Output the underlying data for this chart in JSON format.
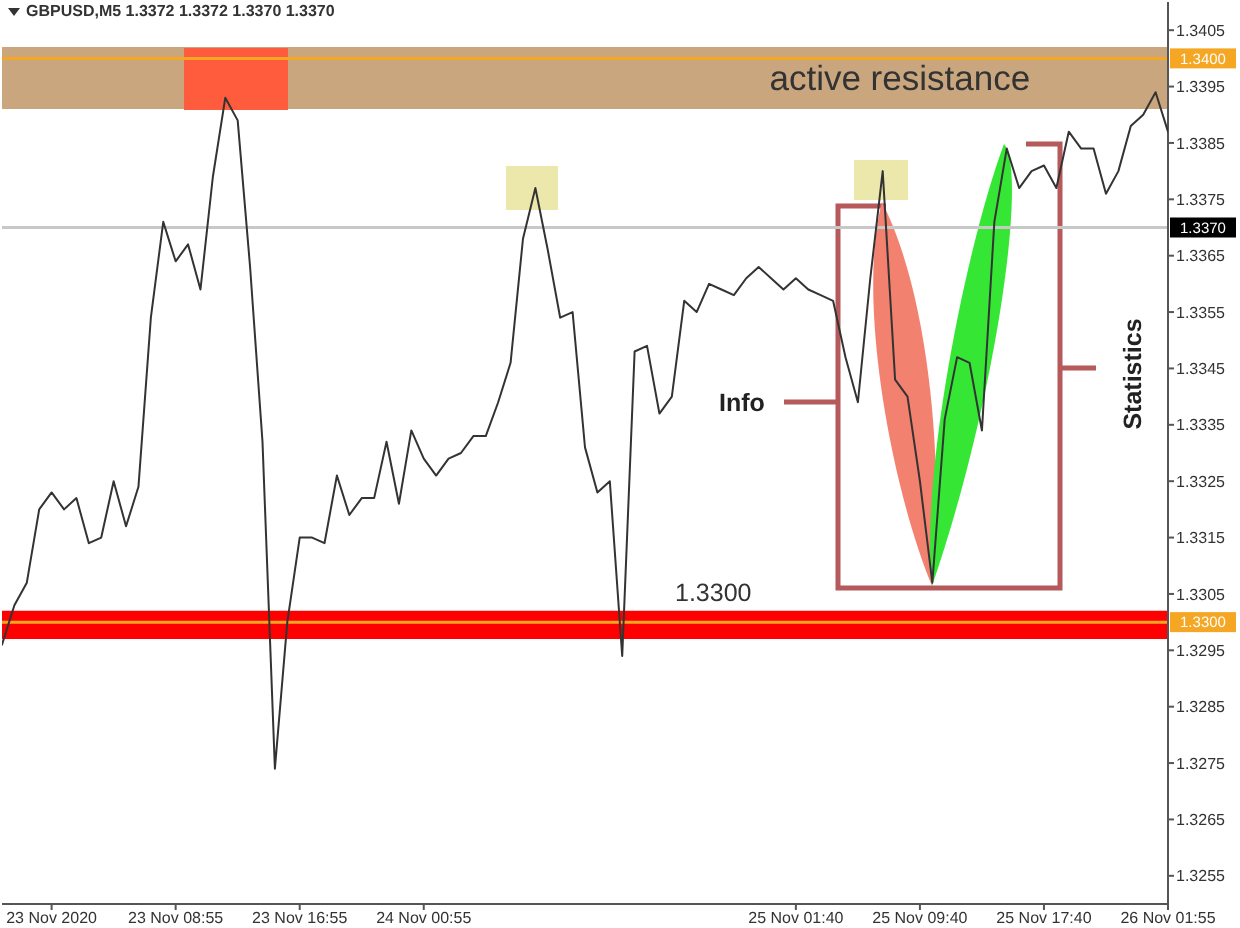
{
  "chart_data": {
    "type": "line",
    "title": "GBPUSD,M5 1.3372 1.3372 1.3370 1.3370",
    "categories": [
      null,
      null,
      null,
      null,
      "23 Nov 2020",
      null,
      null,
      null,
      null,
      null,
      null,
      null,
      null,
      null,
      "23 Nov 08:55",
      null,
      null,
      null,
      null,
      null,
      null,
      null,
      null,
      null,
      "23 Nov 16:55",
      null,
      null,
      null,
      null,
      null,
      null,
      null,
      null,
      null,
      "24 Nov 00:55",
      null,
      null,
      null,
      null,
      null,
      null,
      null,
      null,
      null,
      null,
      null,
      null,
      null,
      null,
      null,
      null,
      null,
      null,
      null,
      null,
      null,
      null,
      null,
      null,
      null,
      null,
      null,
      null,
      null,
      "25 Nov 01:40",
      null,
      null,
      null,
      null,
      null,
      null,
      null,
      null,
      null,
      "25 Nov 09:40",
      null,
      null,
      null,
      null,
      null,
      null,
      null,
      null,
      null,
      "25 Nov 17:40",
      null,
      null,
      null,
      null,
      null,
      null,
      null,
      null,
      null,
      "26 Nov 01:55"
    ],
    "series": [
      {
        "color": "#333333",
        "values": [
          1.3296,
          1.3303,
          1.3307,
          1.332,
          1.3323,
          1.332,
          1.3322,
          1.3314,
          1.3315,
          1.3325,
          1.3317,
          1.3324,
          1.3354,
          1.3371,
          1.3364,
          1.3367,
          1.3359,
          1.3379,
          1.3393,
          1.3389,
          1.3363,
          1.3332,
          1.3274,
          1.33,
          1.3315,
          1.3315,
          1.3314,
          1.3326,
          1.3319,
          1.3322,
          1.3322,
          1.3332,
          1.3321,
          1.3334,
          1.3329,
          1.3326,
          1.3329,
          1.333,
          1.3333,
          1.3333,
          1.3339,
          1.3346,
          1.3368,
          1.3377,
          1.3366,
          1.3354,
          1.3355,
          1.3331,
          1.3323,
          1.3325,
          1.3294,
          1.3348,
          1.3349,
          1.3337,
          1.334,
          1.3357,
          1.3355,
          1.336,
          1.3359,
          1.3358,
          1.3361,
          1.3363,
          1.3361,
          1.3359,
          1.3361,
          1.3359,
          1.3358,
          1.3357,
          1.3347,
          1.3339,
          1.3361,
          1.338,
          1.3343,
          1.334,
          1.3325,
          1.3307,
          1.3336,
          1.3347,
          1.3346,
          1.3334,
          1.3371,
          1.3384,
          1.3377,
          1.338,
          1.3381,
          1.3377,
          1.3387,
          1.3384,
          1.3384,
          1.3376,
          1.338,
          1.3388,
          1.339,
          1.3394,
          1.3387
        ]
      }
    ],
    "ylim": [
      1.325,
      1.341
    ],
    "yticks": [
      1.3255,
      1.3265,
      1.3275,
      1.3285,
      1.3295,
      1.3305,
      1.3315,
      1.3325,
      1.3335,
      1.3345,
      1.3355,
      1.3365,
      1.3375,
      1.3385,
      1.3395,
      1.3405
    ],
    "marker": "none",
    "bands": [
      {
        "axis": "y",
        "from": 1.3391,
        "to": 1.3402,
        "label": "active resistance",
        "color": "#c9a67e"
      },
      {
        "axis": "y",
        "from": 1.3297,
        "to": 1.3302,
        "label": "1.3300",
        "color": "#ff0000"
      }
    ],
    "ref_lines": [
      {
        "axis": "y",
        "value": 1.34,
        "label": "1.3400",
        "color": "#f5a623"
      },
      {
        "axis": "y",
        "value": 1.337,
        "label": "1.3370",
        "color": "#c8c8c8"
      },
      {
        "axis": "y",
        "value": 1.33,
        "label": "1.3300",
        "color": "#f5a623"
      }
    ],
    "annotations": [
      "Info",
      "Statistics"
    ]
  }
}
